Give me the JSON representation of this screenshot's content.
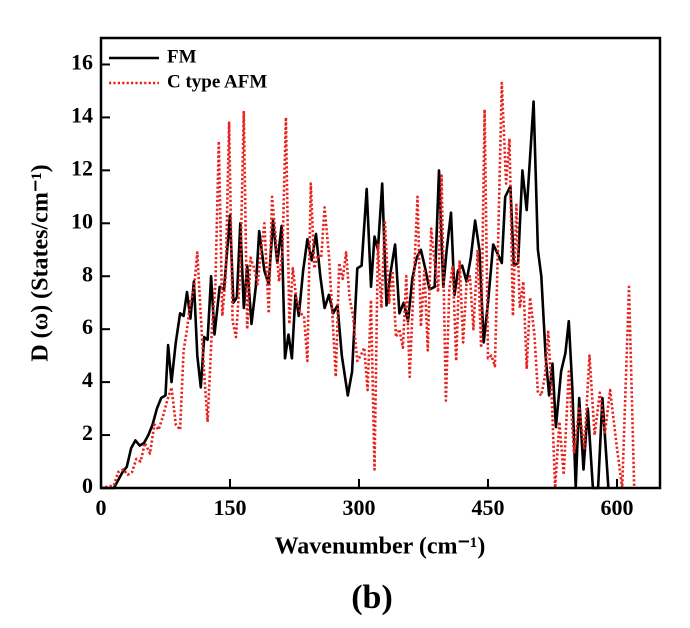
{
  "chart_data": {
    "type": "line",
    "xlabel": "Wavenumber (cm⁻¹)",
    "ylabel": "D (ω) (States/cm⁻¹)",
    "caption": "(b)",
    "xlim": [
      0,
      650
    ],
    "ylim": [
      0,
      17
    ],
    "xticks": [
      0,
      150,
      300,
      450,
      600
    ],
    "yticks": [
      0,
      2,
      4,
      6,
      8,
      10,
      12,
      14,
      16
    ],
    "legend": "upper left",
    "series": [
      {
        "name": "FM",
        "color": "#000000",
        "style": "solid",
        "x": [
          0,
          15,
          20,
          25,
          30,
          35,
          40,
          45,
          50,
          55,
          60,
          65,
          70,
          75,
          78,
          82,
          87,
          92,
          96,
          100,
          104,
          108,
          112,
          116,
          120,
          124,
          128,
          132,
          138,
          143,
          150,
          154,
          158,
          162,
          166,
          170,
          175,
          180,
          184,
          190,
          195,
          200,
          205,
          210,
          214,
          218,
          222,
          226,
          230,
          235,
          240,
          245,
          250,
          255,
          260,
          265,
          270,
          275,
          280,
          287,
          292,
          298,
          303,
          309,
          314,
          318,
          322,
          327,
          332,
          337,
          342,
          347,
          352,
          357,
          362,
          367,
          372,
          377,
          382,
          388,
          393,
          398,
          402,
          407,
          411,
          415,
          420,
          425,
          430,
          435,
          440,
          445,
          450,
          456,
          462,
          466,
          470,
          476,
          480,
          485,
          490,
          495,
          503,
          508,
          512,
          517,
          521,
          525,
          529,
          535,
          540,
          544,
          548,
          552,
          556,
          561,
          566,
          572,
          578,
          583,
          590
        ],
        "values": [
          0,
          0,
          0.3,
          0.6,
          0.8,
          1.5,
          1.8,
          1.6,
          1.7,
          2.0,
          2.4,
          3.0,
          3.4,
          3.5,
          5.4,
          4.0,
          5.5,
          6.6,
          6.5,
          7.4,
          6.4,
          7.8,
          5.0,
          3.8,
          5.7,
          5.6,
          8.0,
          5.8,
          7.6,
          7.5,
          10.3,
          7.0,
          7.2,
          10.0,
          6.8,
          8.4,
          6.2,
          7.6,
          9.7,
          8.2,
          7.7,
          10.1,
          8.5,
          9.9,
          4.9,
          5.8,
          4.9,
          7.3,
          6.5,
          8.2,
          9.4,
          8.6,
          9.6,
          8.0,
          6.8,
          7.3,
          6.6,
          6.9,
          5.0,
          3.5,
          4.4,
          8.3,
          8.4,
          11.3,
          7.6,
          9.5,
          9.0,
          11.5,
          6.9,
          8.2,
          9.2,
          6.6,
          7.0,
          6.3,
          7.9,
          8.7,
          9.0,
          8.3,
          7.5,
          7.6,
          12.0,
          7.6,
          9.0,
          10.4,
          7.3,
          8.2,
          8.4,
          7.8,
          8.7,
          10.1,
          9.0,
          5.5,
          7.0,
          9.2,
          8.8,
          8.5,
          11.0,
          11.4,
          8.4,
          8.5,
          12.0,
          10.5,
          14.6,
          9.0,
          8.0,
          5.0,
          3.5,
          4.7,
          2.3,
          4.4,
          5.1,
          6.3,
          3.8,
          0.0,
          3.4,
          0.7,
          3.0,
          0.0,
          0.0,
          3.4,
          0.0
        ]
      },
      {
        "name": "C type AFM",
        "color": "#e8211c",
        "style": "dotted",
        "x": [
          0,
          15,
          20,
          26,
          31,
          36,
          41,
          46,
          51,
          57,
          62,
          67,
          72,
          77,
          82,
          87,
          92,
          96,
          100,
          104,
          108,
          112,
          116,
          120,
          124,
          129,
          133,
          137,
          141,
          145,
          149,
          153,
          157,
          162,
          166,
          170,
          174,
          178,
          182,
          186,
          190,
          195,
          199,
          203,
          207,
          211,
          215,
          219,
          223,
          227,
          232,
          236,
          240,
          244,
          248,
          252,
          256,
          260,
          265,
          269,
          273,
          277,
          281,
          285,
          289,
          293,
          298,
          302,
          306,
          310,
          314,
          318,
          322,
          326,
          330,
          335,
          339,
          343,
          347,
          351,
          355,
          359,
          363,
          368,
          372,
          376,
          380,
          384,
          388,
          392,
          396,
          401,
          405,
          409,
          413,
          417,
          421,
          425,
          429,
          433,
          438,
          442,
          446,
          450,
          454,
          458,
          462,
          466,
          471,
          475,
          479,
          483,
          487,
          491,
          495,
          499,
          504,
          508,
          512,
          516,
          520,
          524,
          528,
          533,
          538,
          544,
          550,
          556,
          562,
          568,
          574,
          580,
          586,
          592,
          600,
          606,
          614,
          620
        ],
        "values": [
          0,
          0.1,
          0.6,
          0.7,
          0.5,
          0.6,
          1.1,
          1.0,
          1.7,
          1.3,
          2.4,
          2.2,
          2.7,
          3.3,
          3.8,
          2.4,
          2.2,
          5.2,
          6.0,
          7.0,
          7.5,
          8.9,
          6.5,
          4.3,
          2.5,
          6.0,
          7.7,
          13.1,
          6.5,
          8.0,
          13.8,
          6.3,
          5.7,
          8.2,
          14.2,
          6.0,
          8.7,
          8.3,
          7.7,
          8.9,
          10.0,
          6.6,
          11.0,
          9.5,
          7.8,
          9.0,
          14.0,
          6.2,
          8.3,
          7.2,
          6.6,
          6.5,
          4.8,
          11.5,
          8.3,
          8.8,
          8.7,
          10.6,
          8.8,
          6.6,
          4.2,
          8.5,
          7.9,
          8.9,
          7.2,
          6.5,
          4.8,
          5.0,
          5.3,
          3.7,
          7.1,
          0.7,
          9.2,
          6.8,
          10.1,
          7.0,
          8.2,
          5.7,
          6.0,
          5.3,
          8.0,
          4.2,
          7.3,
          11.0,
          6.1,
          8.2,
          5.2,
          9.8,
          8.5,
          7.4,
          11.8,
          3.3,
          7.5,
          8.4,
          4.8,
          8.6,
          5.5,
          7.7,
          8.0,
          6.0,
          9.0,
          5.3,
          14.3,
          4.9,
          5.0,
          4.6,
          9.6,
          15.3,
          11.5,
          13.2,
          6.5,
          10.7,
          6.8,
          7.8,
          4.5,
          7.2,
          5.8,
          3.6,
          3.5,
          4.2,
          5.9,
          3.6,
          0.0,
          2.5,
          0.5,
          4.4,
          1.3,
          3.0,
          1.5,
          5.0,
          2.0,
          3.6,
          2.1,
          3.7,
          1.5,
          0.0,
          7.6,
          0.0
        ]
      }
    ]
  }
}
